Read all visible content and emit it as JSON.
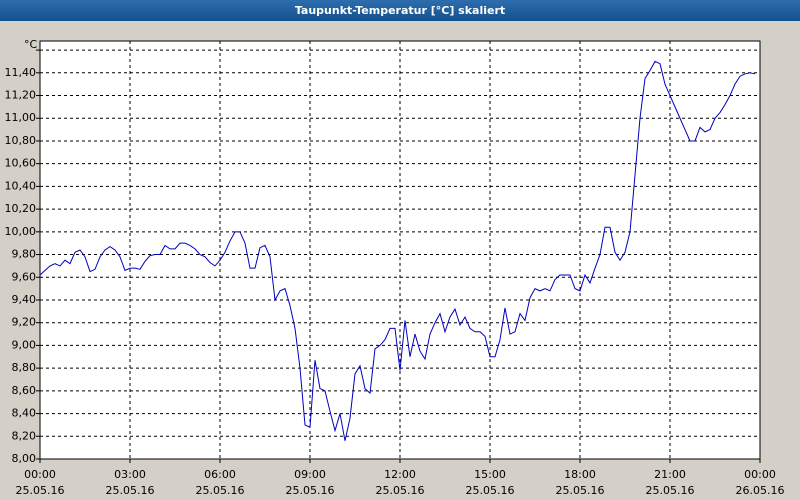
{
  "chart_data": {
    "type": "line",
    "title": "Taupunkt-Temperatur [°C] skaliert",
    "y_unit": "°C",
    "x": [
      0,
      10,
      20,
      30,
      40,
      50,
      60,
      70,
      80,
      90,
      100,
      110,
      120,
      130,
      140,
      150,
      160,
      170,
      180,
      190,
      200,
      210,
      220,
      230,
      240,
      250,
      260,
      270,
      280,
      290,
      300,
      310,
      320,
      330,
      340,
      350,
      360,
      370,
      380,
      390,
      400,
      410,
      420,
      430,
      440,
      450,
      460,
      470,
      480,
      490,
      500,
      510,
      520,
      530,
      540,
      550,
      560,
      570,
      580,
      590,
      600,
      610,
      620,
      630,
      640,
      650,
      660,
      670,
      680,
      690,
      700,
      710,
      720,
      730,
      740,
      750,
      760,
      770,
      780,
      790,
      800,
      810,
      820,
      830,
      840,
      850,
      860,
      870,
      880,
      890,
      900,
      910,
      920,
      930,
      940,
      950,
      960,
      970,
      980,
      990,
      1000,
      1010,
      1020,
      1030,
      1040,
      1050,
      1060,
      1070,
      1080,
      1090,
      1100,
      1110,
      1120,
      1130,
      1140,
      1150,
      1160,
      1170,
      1180,
      1190,
      1200,
      1210,
      1220,
      1230,
      1240,
      1250,
      1260,
      1270,
      1280,
      1290,
      1300,
      1310,
      1320,
      1330,
      1340,
      1350,
      1360,
      1370,
      1380,
      1390,
      1400,
      1410,
      1420,
      1430
    ],
    "series": [
      {
        "name": "Taupunkt-Temperatur",
        "color": "#0000c0",
        "values": [
          9.62,
          9.66,
          9.7,
          9.72,
          9.7,
          9.75,
          9.72,
          9.82,
          9.84,
          9.78,
          9.65,
          9.67,
          9.78,
          9.84,
          9.87,
          9.84,
          9.78,
          9.66,
          9.68,
          9.68,
          9.67,
          9.74,
          9.79,
          9.8,
          9.8,
          9.88,
          9.85,
          9.85,
          9.9,
          9.9,
          9.88,
          9.85,
          9.8,
          9.78,
          9.73,
          9.7,
          9.75,
          9.82,
          9.92,
          10.0,
          10.0,
          9.9,
          9.68,
          9.68,
          9.86,
          9.88,
          9.78,
          9.4,
          9.48,
          9.5,
          9.35,
          9.15,
          8.8,
          8.3,
          8.28,
          8.87,
          8.62,
          8.6,
          8.42,
          8.25,
          8.4,
          8.16,
          8.36,
          8.75,
          8.82,
          8.62,
          8.58,
          8.97,
          9.0,
          9.05,
          9.15,
          9.15,
          8.78,
          9.22,
          8.9,
          9.1,
          8.95,
          8.88,
          9.1,
          9.2,
          9.28,
          9.12,
          9.25,
          9.32,
          9.18,
          9.25,
          9.15,
          9.12,
          9.12,
          9.08,
          8.9,
          8.9,
          9.05,
          9.33,
          9.1,
          9.12,
          9.28,
          9.22,
          9.42,
          9.5,
          9.48,
          9.5,
          9.48,
          9.58,
          9.62,
          9.62,
          9.62,
          9.5,
          9.48,
          9.62,
          9.55,
          9.68,
          9.8,
          10.04,
          10.04,
          9.82,
          9.75,
          9.82,
          10.0,
          10.5,
          11.0,
          11.35,
          11.42,
          11.5,
          11.48,
          11.3,
          11.2,
          11.1,
          11.0,
          10.9,
          10.8,
          10.8,
          10.92,
          10.88,
          10.9,
          11.0,
          11.05,
          11.12,
          11.2,
          11.3,
          11.37,
          11.39,
          11.4,
          11.39
        ]
      }
    ],
    "xlim": [
      0,
      1440
    ],
    "xticks": [
      {
        "value": 0,
        "label": "00:00",
        "sublabel": "25.05.16"
      },
      {
        "value": 180,
        "label": "03:00",
        "sublabel": "25.05.16"
      },
      {
        "value": 360,
        "label": "06:00",
        "sublabel": "25.05.16"
      },
      {
        "value": 540,
        "label": "09:00",
        "sublabel": "25.05.16"
      },
      {
        "value": 720,
        "label": "12:00",
        "sublabel": "25.05.16"
      },
      {
        "value": 900,
        "label": "15:00",
        "sublabel": "25.05.16"
      },
      {
        "value": 1080,
        "label": "18:00",
        "sublabel": "25.05.16"
      },
      {
        "value": 1260,
        "label": "21:00",
        "sublabel": "25.05.16"
      },
      {
        "value": 1440,
        "label": "00:00",
        "sublabel": "26.05.16"
      }
    ],
    "ylim": [
      8,
      11.68
    ],
    "yticks": [
      {
        "value": 8,
        "label": "8,00"
      },
      {
        "value": 8.2,
        "label": "8,20"
      },
      {
        "value": 8.4,
        "label": "8,40"
      },
      {
        "value": 8.6,
        "label": "8,60"
      },
      {
        "value": 8.8,
        "label": "8,80"
      },
      {
        "value": 9,
        "label": "9,00"
      },
      {
        "value": 9.2,
        "label": "9,20"
      },
      {
        "value": 9.4,
        "label": "9,40"
      },
      {
        "value": 9.6,
        "label": "9,60"
      },
      {
        "value": 9.8,
        "label": "9,80"
      },
      {
        "value": 10,
        "label": "10,00"
      },
      {
        "value": 10.2,
        "label": "10,20"
      },
      {
        "value": 10.4,
        "label": "10,40"
      },
      {
        "value": 10.6,
        "label": "10,60"
      },
      {
        "value": 10.8,
        "label": "10,80"
      },
      {
        "value": 11,
        "label": "11,00"
      },
      {
        "value": 11.2,
        "label": "11,20"
      },
      {
        "value": 11.4,
        "label": "11,40"
      },
      {
        "value": 11.6,
        "label": ""
      }
    ],
    "grid": true
  }
}
